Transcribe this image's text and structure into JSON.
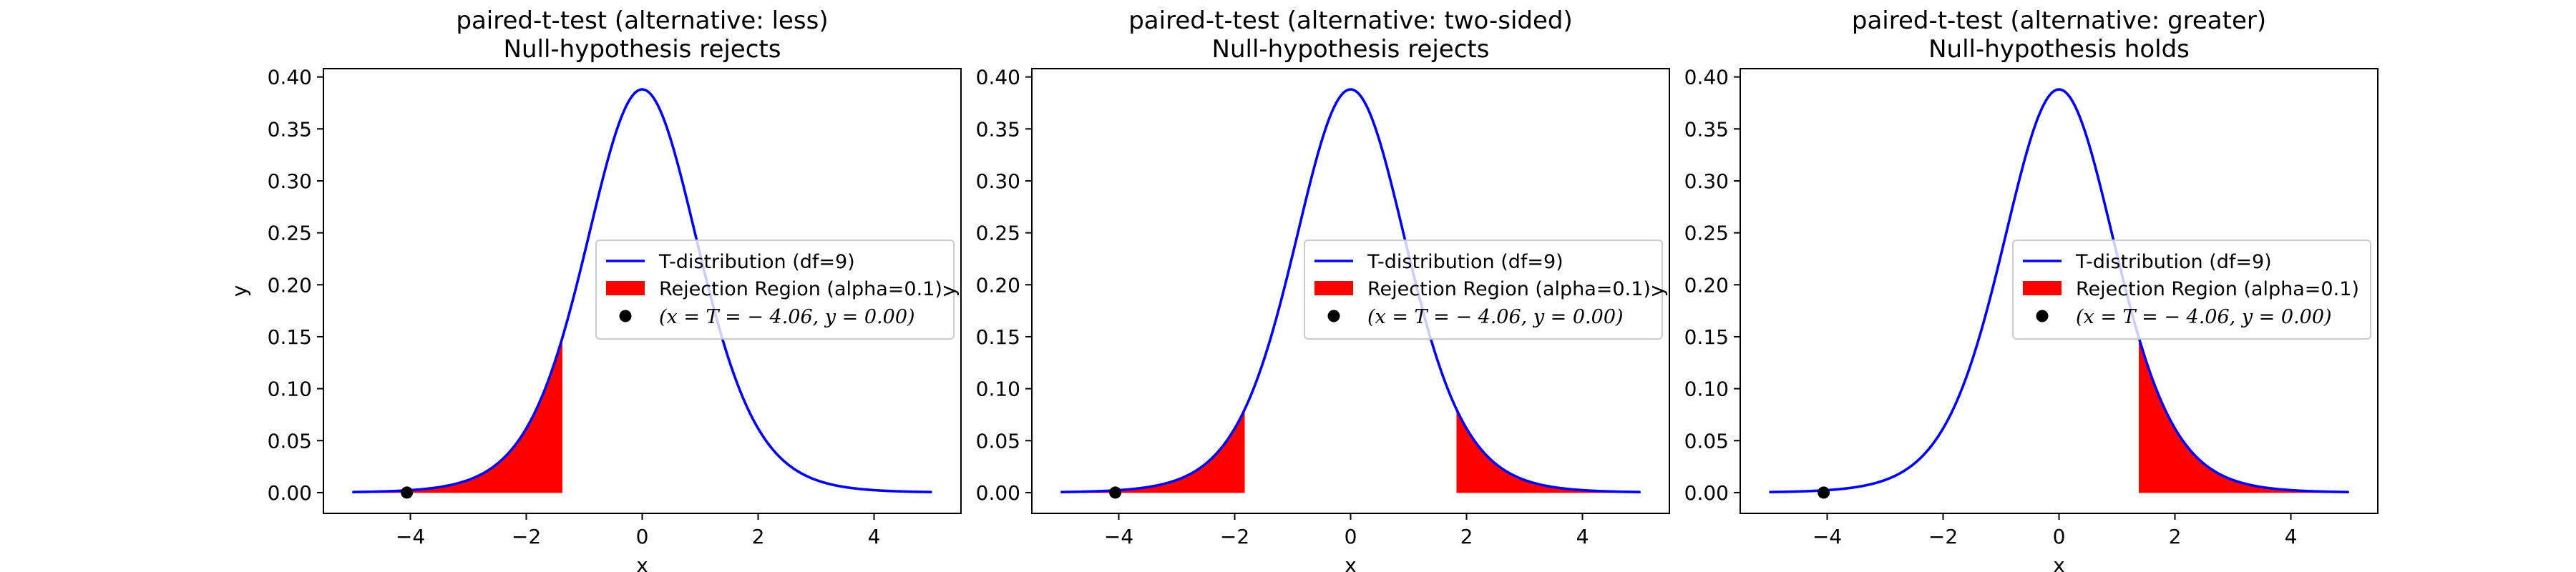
{
  "chart_data": [
    {
      "type": "line",
      "title": [
        "paired-t-test (alternative: less)",
        "Null-hypothesis rejects"
      ],
      "xlabel": "x",
      "ylabel": "y",
      "xlim": [
        -5.5,
        5.5
      ],
      "ylim": [
        -0.02,
        0.408
      ],
      "xticks": [
        -4,
        -2,
        0,
        2,
        4
      ],
      "xtick_labels": [
        "−4",
        "−2",
        "0",
        "2",
        "4"
      ],
      "yticks": [
        0.0,
        0.05,
        0.1,
        0.15,
        0.2,
        0.25,
        0.3,
        0.35,
        0.4
      ],
      "ytick_labels": [
        "0.00",
        "0.05",
        "0.10",
        "0.15",
        "0.20",
        "0.25",
        "0.30",
        "0.35",
        "0.40"
      ],
      "curve": {
        "name": "T-distribution (df=9)",
        "df": 9,
        "x_range": [
          -5,
          5
        ],
        "color": "#0000ff"
      },
      "rejection_regions": [
        {
          "from": -5,
          "to": -1.383
        }
      ],
      "rejection_name": "Rejection Region (alpha=0.1)",
      "rejection_color": "#ff0000",
      "point": {
        "x": -4.06,
        "y": 0.0,
        "color": "#000000"
      },
      "point_label": "(x = T = − 4.06, y = 0.00)",
      "legend_position": "center-right"
    },
    {
      "type": "line",
      "title": [
        "paired-t-test (alternative: two-sided)",
        "Null-hypothesis rejects"
      ],
      "xlabel": "x",
      "ylabel": "y",
      "xlim": [
        -5.5,
        5.5
      ],
      "ylim": [
        -0.02,
        0.408
      ],
      "xticks": [
        -4,
        -2,
        0,
        2,
        4
      ],
      "xtick_labels": [
        "−4",
        "−2",
        "0",
        "2",
        "4"
      ],
      "yticks": [
        0.0,
        0.05,
        0.1,
        0.15,
        0.2,
        0.25,
        0.3,
        0.35,
        0.4
      ],
      "ytick_labels": [
        "0.00",
        "0.05",
        "0.10",
        "0.15",
        "0.20",
        "0.25",
        "0.30",
        "0.35",
        "0.40"
      ],
      "curve": {
        "name": "T-distribution (df=9)",
        "df": 9,
        "x_range": [
          -5,
          5
        ],
        "color": "#0000ff"
      },
      "rejection_regions": [
        {
          "from": -5,
          "to": -1.833
        },
        {
          "from": 1.833,
          "to": 5
        }
      ],
      "rejection_name": "Rejection Region (alpha=0.1)",
      "rejection_color": "#ff0000",
      "point": {
        "x": -4.06,
        "y": 0.0,
        "color": "#000000"
      },
      "point_label": "(x = T = − 4.06, y = 0.00)",
      "legend_position": "center-right"
    },
    {
      "type": "line",
      "title": [
        "paired-t-test (alternative: greater)",
        "Null-hypothesis holds"
      ],
      "xlabel": "x",
      "ylabel": "y",
      "xlim": [
        -5.5,
        5.5
      ],
      "ylim": [
        -0.02,
        0.408
      ],
      "xticks": [
        -4,
        -2,
        0,
        2,
        4
      ],
      "xtick_labels": [
        "−4",
        "−2",
        "0",
        "2",
        "4"
      ],
      "yticks": [
        0.0,
        0.05,
        0.1,
        0.15,
        0.2,
        0.25,
        0.3,
        0.35,
        0.4
      ],
      "ytick_labels": [
        "0.00",
        "0.05",
        "0.10",
        "0.15",
        "0.20",
        "0.25",
        "0.30",
        "0.35",
        "0.40"
      ],
      "curve": {
        "name": "T-distribution (df=9)",
        "df": 9,
        "x_range": [
          -5,
          5
        ],
        "color": "#0000ff"
      },
      "rejection_regions": [
        {
          "from": 1.383,
          "to": 5
        }
      ],
      "rejection_name": "Rejection Region (alpha=0.1)",
      "rejection_color": "#ff0000",
      "point": {
        "x": -4.06,
        "y": 0.0,
        "color": "#000000"
      },
      "point_label": "(x = T = − 4.06, y = 0.00)",
      "legend_position": "center-right"
    }
  ]
}
